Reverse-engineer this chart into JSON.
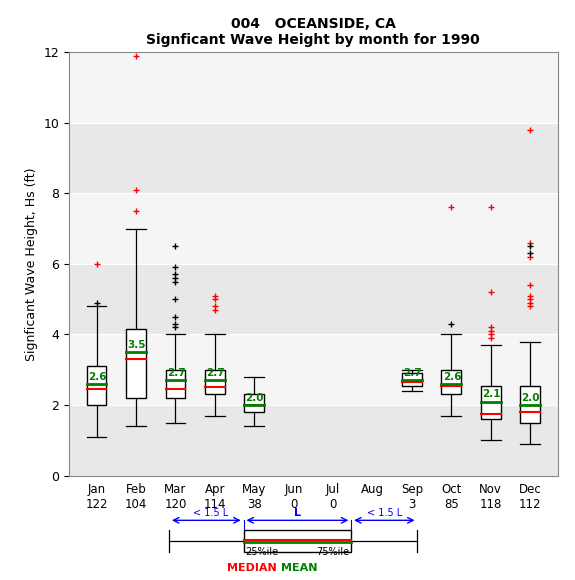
{
  "title1": "004   OCEANSIDE, CA",
  "title2": "Signficant Wave Height by month for 1990",
  "ylabel": "Signficant Wave Height, Hs (ft)",
  "months": [
    "Jan",
    "Feb",
    "Mar",
    "Apr",
    "May",
    "Jun",
    "Jul",
    "Aug",
    "Sep",
    "Oct",
    "Nov",
    "Dec"
  ],
  "counts": [
    122,
    104,
    120,
    114,
    38,
    0,
    0,
    null,
    3,
    85,
    118,
    112
  ],
  "ylim": [
    0,
    12
  ],
  "yticks": [
    0,
    2,
    4,
    6,
    8,
    10,
    12
  ],
  "box_data": {
    "Jan": {
      "q1": 2.0,
      "median": 2.45,
      "q3": 3.1,
      "mean": 2.6,
      "whislo": 1.1,
      "whishi": 4.8,
      "fliers_black": [
        4.9
      ],
      "fliers_red": [
        6.0
      ]
    },
    "Feb": {
      "q1": 2.2,
      "median": 3.3,
      "q3": 4.15,
      "mean": 3.5,
      "whislo": 1.4,
      "whishi": 7.0,
      "fliers_black": [],
      "fliers_red": [
        7.5,
        8.1,
        11.9
      ]
    },
    "Mar": {
      "q1": 2.2,
      "median": 2.45,
      "q3": 3.0,
      "mean": 2.7,
      "whislo": 1.5,
      "whishi": 4.0,
      "fliers_black": [
        4.2,
        4.3,
        4.5,
        5.0,
        5.5,
        5.6,
        5.7,
        5.9,
        6.5
      ],
      "fliers_red": []
    },
    "Apr": {
      "q1": 2.3,
      "median": 2.5,
      "q3": 3.0,
      "mean": 2.7,
      "whislo": 1.7,
      "whishi": 4.0,
      "fliers_black": [],
      "fliers_red": [
        4.7,
        4.8,
        5.0,
        5.1
      ]
    },
    "May": {
      "q1": 1.8,
      "median": 2.0,
      "q3": 2.3,
      "mean": 2.0,
      "whislo": 1.4,
      "whishi": 2.8,
      "fliers_black": [],
      "fliers_red": []
    },
    "Jun": null,
    "Jul": null,
    "Aug": null,
    "Sep": {
      "q1": 2.55,
      "median": 2.65,
      "q3": 2.9,
      "mean": 2.7,
      "whislo": 2.4,
      "whishi": 3.0,
      "fliers_black": [],
      "fliers_red": []
    },
    "Oct": {
      "q1": 2.3,
      "median": 2.55,
      "q3": 3.0,
      "mean": 2.6,
      "whislo": 1.7,
      "whishi": 4.0,
      "fliers_black": [
        4.3
      ],
      "fliers_red": [
        7.6
      ]
    },
    "Nov": {
      "q1": 1.6,
      "median": 1.75,
      "q3": 2.55,
      "mean": 2.1,
      "whislo": 1.0,
      "whishi": 3.7,
      "fliers_black": [],
      "fliers_red": [
        3.9,
        4.0,
        4.1,
        4.2,
        5.2,
        7.6
      ]
    },
    "Dec": {
      "q1": 1.5,
      "median": 1.8,
      "q3": 2.55,
      "mean": 2.0,
      "whislo": 0.9,
      "whishi": 3.8,
      "fliers_black": [
        6.3,
        6.5
      ],
      "fliers_red": [
        4.8,
        4.9,
        5.0,
        5.1,
        5.4,
        6.2,
        6.6,
        9.8
      ]
    }
  },
  "band_colors": [
    "#e8e8e8",
    "#f5f5f5"
  ],
  "box_facecolor": "white",
  "median_color": "red",
  "mean_color": "green",
  "flier_color_red": "red",
  "flier_color_black": "black",
  "box_width": 0.5
}
